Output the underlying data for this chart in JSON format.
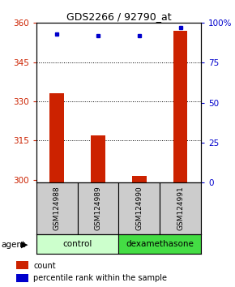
{
  "title": "GDS2266 / 92790_at",
  "samples": [
    "GSM124988",
    "GSM124989",
    "GSM124990",
    "GSM124991"
  ],
  "count_values": [
    333,
    317,
    301.5,
    357
  ],
  "percentile_values": [
    93,
    92,
    92,
    97
  ],
  "ylim_left": [
    299,
    360
  ],
  "ylim_right": [
    0,
    100
  ],
  "yticks_left": [
    300,
    315,
    330,
    345,
    360
  ],
  "yticks_right": [
    0,
    25,
    50,
    75,
    100
  ],
  "yticklabels_right": [
    "0",
    "25",
    "50",
    "75",
    "100%"
  ],
  "bar_color": "#cc2200",
  "dot_color": "#0000cc",
  "agent_groups": [
    {
      "label": "control",
      "samples": [
        0,
        1
      ],
      "color": "#ccffcc"
    },
    {
      "label": "dexamethasone",
      "samples": [
        2,
        3
      ],
      "color": "#44dd44"
    }
  ],
  "sample_box_color": "#cccccc",
  "xlabel_agent": "agent",
  "legend_count_label": "count",
  "legend_percentile_label": "percentile rank within the sample",
  "bar_width": 0.35
}
